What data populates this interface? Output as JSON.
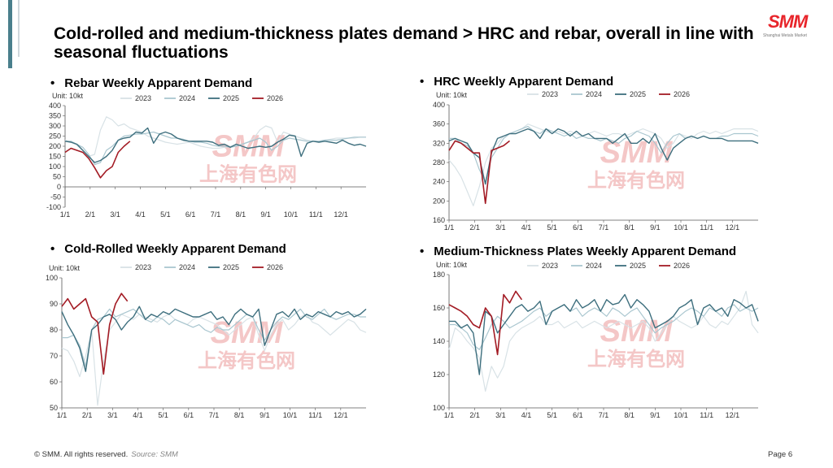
{
  "colors": {
    "accent": "#4a7f8c",
    "c2023": "#d8e2e6",
    "c2024": "#a9c6cf",
    "c2025": "#3e6f7e",
    "c2026": "#a31b24",
    "logo": "#e8252b",
    "grid": "#d9d9d9"
  },
  "page": {
    "title": "Cold-rolled and medium-thickness plates demand > HRC and rebar, overall in line with seasonal fluctuations",
    "logo": "SMM",
    "logo_sub": "Shanghai Metals Market",
    "watermark_en": "SMM",
    "watermark_cn": "上海有色网",
    "footer_copyright": "© SMM. All rights reserved.",
    "footer_source": "Source: SMM",
    "page_number": "Page 6"
  },
  "chart_data": [
    {
      "type": "line",
      "title": "Rebar Weekly Apparent Demand",
      "unit": "Unit: 10kt",
      "ylim": [
        -100,
        400
      ],
      "yticks": [
        -100,
        -50,
        0,
        50,
        100,
        150,
        200,
        250,
        300,
        350,
        400
      ],
      "xticks": [
        "1/1",
        "2/1",
        "3/1",
        "4/1",
        "5/1",
        "6/1",
        "7/1",
        "8/1",
        "9/1",
        "10/1",
        "11/1",
        "12/1"
      ],
      "series": [
        {
          "name": "2023",
          "values": [
            230,
            220,
            205,
            180,
            150,
            160,
            280,
            345,
            330,
            300,
            310,
            290,
            280,
            270,
            250,
            240,
            230,
            220,
            215,
            210,
            215,
            220,
            210,
            200,
            195,
            190,
            190,
            195,
            200,
            205,
            210,
            220,
            240,
            280,
            300,
            290,
            220,
            270,
            260,
            250,
            240,
            230,
            225,
            225,
            230,
            235,
            240,
            240,
            240,
            240,
            245,
            245
          ]
        },
        {
          "name": "2024",
          "values": [
            225,
            225,
            210,
            195,
            160,
            110,
            120,
            180,
            200,
            230,
            250,
            255,
            260,
            260,
            265,
            270,
            260,
            250,
            240,
            240,
            235,
            225,
            220,
            220,
            215,
            205,
            200,
            200,
            195,
            200,
            210,
            220,
            230,
            240,
            220,
            180,
            200,
            230,
            240,
            235,
            230,
            225,
            225,
            225,
            230,
            230,
            230,
            235,
            240,
            245,
            245,
            245
          ]
        },
        {
          "name": "2025",
          "values": [
            225,
            220,
            210,
            180,
            150,
            120,
            130,
            150,
            180,
            230,
            240,
            245,
            270,
            265,
            290,
            215,
            260,
            270,
            260,
            240,
            230,
            225,
            225,
            225,
            225,
            220,
            205,
            210,
            195,
            210,
            200,
            190,
            195,
            200,
            195,
            200,
            220,
            235,
            255,
            250,
            150,
            215,
            225,
            220,
            225,
            220,
            215,
            230,
            215,
            205,
            210,
            200
          ]
        },
        {
          "name": "2026",
          "values": [
            170,
            190,
            180,
            170,
            140,
            95,
            45,
            80,
            100,
            170,
            200,
            225
          ]
        }
      ]
    },
    {
      "type": "line",
      "title": "HRC Weekly Apparent Demand",
      "unit": "Unit: 10kt",
      "ylim": [
        160,
        400
      ],
      "yticks": [
        160,
        200,
        240,
        280,
        320,
        360,
        400
      ],
      "xticks": [
        "1/1",
        "2/1",
        "3/1",
        "4/1",
        "5/1",
        "6/1",
        "7/1",
        "8/1",
        "9/1",
        "10/1",
        "11/1",
        "12/1"
      ],
      "series": [
        {
          "name": "2023",
          "values": [
            285,
            270,
            250,
            220,
            190,
            230,
            280,
            310,
            320,
            335,
            340,
            345,
            350,
            360,
            355,
            350,
            345,
            340,
            345,
            340,
            345,
            340,
            335,
            340,
            345,
            340,
            335,
            340,
            340,
            335,
            340,
            345,
            350,
            345,
            340,
            330,
            310,
            320,
            340,
            335,
            330,
            340,
            345,
            340,
            345,
            340,
            345,
            350,
            350,
            350,
            350,
            345
          ]
        },
        {
          "name": "2024",
          "values": [
            330,
            330,
            320,
            315,
            300,
            265,
            240,
            290,
            310,
            330,
            340,
            345,
            350,
            355,
            345,
            340,
            350,
            345,
            340,
            335,
            340,
            330,
            335,
            330,
            330,
            325,
            330,
            325,
            320,
            330,
            335,
            345,
            340,
            335,
            320,
            300,
            320,
            335,
            340,
            330,
            335,
            330,
            335,
            330,
            330,
            335,
            335,
            340,
            340,
            340,
            340,
            335
          ]
        },
        {
          "name": "2025",
          "values": [
            325,
            330,
            325,
            320,
            300,
            290,
            235,
            300,
            330,
            335,
            340,
            340,
            345,
            350,
            345,
            330,
            350,
            340,
            350,
            345,
            335,
            345,
            335,
            340,
            330,
            330,
            330,
            320,
            330,
            340,
            320,
            320,
            330,
            320,
            340,
            310,
            285,
            310,
            320,
            330,
            335,
            330,
            335,
            330,
            330,
            330,
            325,
            325,
            325,
            325,
            325,
            320
          ]
        },
        {
          "name": "2026",
          "values": [
            305,
            325,
            320,
            310,
            300,
            300,
            195,
            305,
            310,
            315,
            325
          ]
        }
      ]
    },
    {
      "type": "line",
      "title": "Cold-Rolled Weekly Apparent Demand",
      "unit": "Unit: 10kt",
      "ylim": [
        50,
        100
      ],
      "yticks": [
        50,
        60,
        70,
        80,
        90,
        100
      ],
      "xticks": [
        "1/1",
        "2/1",
        "3/1",
        "4/1",
        "5/1",
        "6/1",
        "7/1",
        "8/1",
        "9/1",
        "10/1",
        "11/1",
        "12/1"
      ],
      "series": [
        {
          "name": "2023",
          "values": [
            73,
            72,
            68,
            62,
            70,
            80,
            51,
            68,
            80,
            83,
            86,
            85,
            84,
            86,
            85,
            84,
            83,
            85,
            86,
            84,
            83,
            82,
            84,
            85,
            84,
            83,
            82,
            80,
            78,
            80,
            82,
            84,
            85,
            78,
            72,
            78,
            82,
            84,
            80,
            82,
            85,
            86,
            83,
            82,
            80,
            78,
            80,
            82,
            84,
            83,
            80,
            79
          ]
        },
        {
          "name": "2024",
          "values": [
            77,
            77,
            78,
            74,
            66,
            80,
            84,
            85,
            88,
            85,
            86,
            87,
            88,
            86,
            84,
            83,
            85,
            84,
            82,
            84,
            83,
            82,
            81,
            82,
            80,
            79,
            81,
            80,
            80,
            82,
            84,
            86,
            85,
            80,
            76,
            80,
            83,
            85,
            84,
            86,
            88,
            85,
            84,
            86,
            88,
            85,
            84,
            85,
            86,
            86,
            85,
            85
          ]
        },
        {
          "name": "2025",
          "values": [
            87,
            82,
            78,
            73,
            64,
            80,
            82,
            85,
            86,
            84,
            80,
            83,
            85,
            89,
            84,
            86,
            85,
            87,
            86,
            88,
            87,
            86,
            85,
            85,
            86,
            87,
            84,
            85,
            82,
            86,
            88,
            86,
            85,
            88,
            74,
            80,
            86,
            87,
            85,
            88,
            84,
            86,
            85,
            87,
            86,
            85,
            87,
            86,
            87,
            85,
            86,
            88
          ]
        },
        {
          "name": "2026",
          "values": [
            89,
            92,
            88,
            90,
            92,
            85,
            83,
            63,
            82,
            90,
            94,
            91
          ]
        }
      ]
    },
    {
      "type": "line",
      "title": "Medium-Thickness Plates Weekly Apparent Demand",
      "unit": "Unit: 10kt",
      "ylim": [
        100,
        180
      ],
      "yticks": [
        100,
        120,
        140,
        160,
        180
      ],
      "xticks": [
        "1/1",
        "2/1",
        "3/1",
        "4/1",
        "5/1",
        "6/1",
        "7/1",
        "8/1",
        "9/1",
        "10/1",
        "11/1",
        "12/1"
      ],
      "series": [
        {
          "name": "2023",
          "values": [
            135,
            148,
            145,
            140,
            136,
            130,
            110,
            125,
            118,
            125,
            140,
            145,
            148,
            150,
            152,
            155,
            150,
            150,
            152,
            148,
            150,
            152,
            148,
            150,
            152,
            150,
            148,
            150,
            152,
            150,
            148,
            150,
            152,
            148,
            140,
            145,
            150,
            155,
            152,
            150,
            148,
            150,
            155,
            150,
            148,
            152,
            150,
            155,
            160,
            170,
            150,
            145
          ]
        },
        {
          "name": "2024",
          "values": [
            150,
            150,
            148,
            145,
            138,
            135,
            142,
            150,
            155,
            152,
            148,
            150,
            152,
            155,
            158,
            160,
            155,
            158,
            160,
            162,
            158,
            160,
            155,
            158,
            160,
            158,
            155,
            160,
            158,
            155,
            158,
            160,
            155,
            150,
            145,
            148,
            150,
            152,
            155,
            158,
            160,
            158,
            155,
            160,
            158,
            155,
            160,
            162,
            158,
            160,
            158,
            160
          ]
        },
        {
          "name": "2025",
          "values": [
            152,
            152,
            148,
            150,
            145,
            120,
            158,
            155,
            145,
            150,
            155,
            160,
            162,
            158,
            160,
            164,
            150,
            158,
            160,
            162,
            158,
            165,
            160,
            162,
            165,
            158,
            165,
            162,
            163,
            168,
            160,
            165,
            162,
            158,
            148,
            150,
            152,
            155,
            160,
            162,
            165,
            150,
            160,
            162,
            158,
            160,
            155,
            165,
            163,
            160,
            162,
            152
          ]
        },
        {
          "name": "2026",
          "values": [
            162,
            160,
            158,
            155,
            150,
            148,
            160,
            155,
            132,
            168,
            163,
            170,
            165
          ]
        }
      ]
    }
  ]
}
